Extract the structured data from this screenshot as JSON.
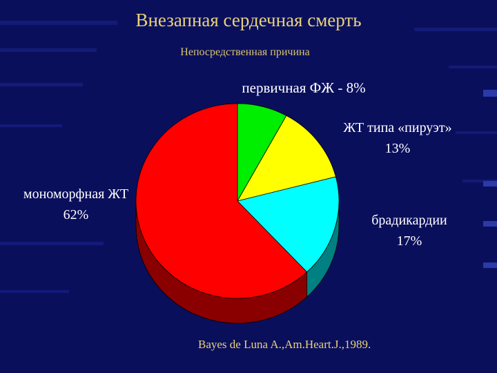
{
  "title": "Внезапная сердечная смерть",
  "subtitle": "Непосредственная причина",
  "source": "Bayes de Luna A.,Am.Heart.J.,1989.",
  "colors": {
    "background": "#0a0f5c",
    "title": "#e8d27a"
  },
  "chart_data": {
    "type": "pie",
    "title": "Внезапная сердечная смерть",
    "subtitle": "Непосредственная причина",
    "slices": [
      {
        "label": "первичная ФЖ",
        "value": 8,
        "display": "первичная ФЖ - 8%",
        "color": "#00ee00",
        "dark": "#007700"
      },
      {
        "label": "ЖТ типа «пируэт»",
        "value": 13,
        "display_line1": "ЖТ типа «пируэт»",
        "display_line2": "13%",
        "color": "#ffff00",
        "dark": "#888800"
      },
      {
        "label": "брадикардии",
        "value": 17,
        "display_line1": "брадикардии",
        "display_line2": "17%",
        "color": "#00ffff",
        "dark": "#008080"
      },
      {
        "label": "мономорфная ЖТ",
        "value": 62,
        "display_line1": "мономорфная ЖТ",
        "display_line2": "62%",
        "color": "#ff0000",
        "dark": "#8a0000"
      }
    ],
    "start_angle_deg": -90,
    "three_d": true
  }
}
